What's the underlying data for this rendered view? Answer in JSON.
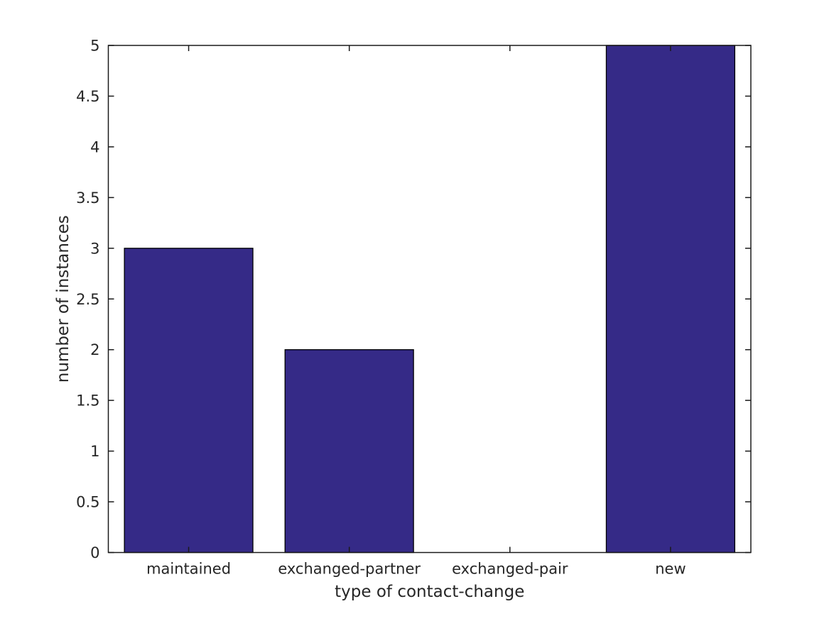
{
  "chart_data": {
    "type": "bar",
    "categories": [
      "maintained",
      "exchanged-partner",
      "exchanged-pair",
      "new"
    ],
    "values": [
      3,
      2,
      0,
      5
    ],
    "title": "",
    "xlabel": "type of contact-change",
    "ylabel": "number of instances",
    "ylim": [
      0,
      5
    ],
    "yticks": [
      0,
      0.5,
      1,
      1.5,
      2,
      2.5,
      3,
      3.5,
      4,
      4.5,
      5
    ],
    "ytick_labels": [
      "0",
      "0.5",
      "1",
      "1.5",
      "2",
      "2.5",
      "3",
      "3.5",
      "4",
      "4.5",
      "5"
    ],
    "bar_width_fraction": 0.8,
    "grid": false,
    "legend": "none",
    "box": true,
    "tick_direction": "in",
    "colors": {
      "bar_fill": "#352a87",
      "bar_edge": "#000000",
      "axis": "#1a1a1a",
      "text": "#262626",
      "background": "#ffffff"
    }
  }
}
